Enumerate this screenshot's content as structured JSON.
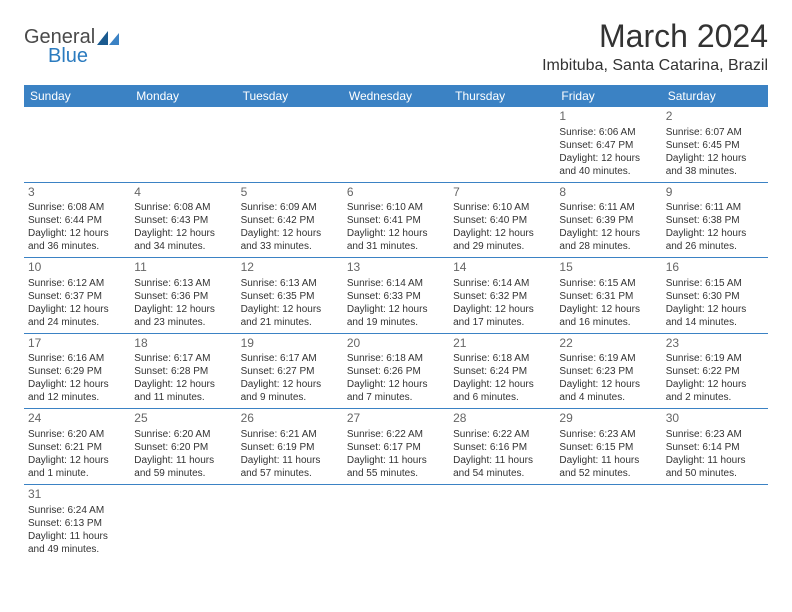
{
  "logo": {
    "general": "General",
    "blue": "Blue"
  },
  "title": "March 2024",
  "location": "Imbituba, Santa Catarina, Brazil",
  "colors": {
    "header_bg": "#3b82c4",
    "header_text": "#ffffff",
    "border": "#3b82c4",
    "text": "#333333",
    "daynum": "#666666",
    "logo_blue": "#2b7bbf",
    "logo_gray": "#4a4a4a"
  },
  "dayNames": [
    "Sunday",
    "Monday",
    "Tuesday",
    "Wednesday",
    "Thursday",
    "Friday",
    "Saturday"
  ],
  "weeks": [
    [
      null,
      null,
      null,
      null,
      null,
      {
        "n": "1",
        "sr": "Sunrise: 6:06 AM",
        "ss": "Sunset: 6:47 PM",
        "d1": "Daylight: 12 hours",
        "d2": "and 40 minutes."
      },
      {
        "n": "2",
        "sr": "Sunrise: 6:07 AM",
        "ss": "Sunset: 6:45 PM",
        "d1": "Daylight: 12 hours",
        "d2": "and 38 minutes."
      }
    ],
    [
      {
        "n": "3",
        "sr": "Sunrise: 6:08 AM",
        "ss": "Sunset: 6:44 PM",
        "d1": "Daylight: 12 hours",
        "d2": "and 36 minutes."
      },
      {
        "n": "4",
        "sr": "Sunrise: 6:08 AM",
        "ss": "Sunset: 6:43 PM",
        "d1": "Daylight: 12 hours",
        "d2": "and 34 minutes."
      },
      {
        "n": "5",
        "sr": "Sunrise: 6:09 AM",
        "ss": "Sunset: 6:42 PM",
        "d1": "Daylight: 12 hours",
        "d2": "and 33 minutes."
      },
      {
        "n": "6",
        "sr": "Sunrise: 6:10 AM",
        "ss": "Sunset: 6:41 PM",
        "d1": "Daylight: 12 hours",
        "d2": "and 31 minutes."
      },
      {
        "n": "7",
        "sr": "Sunrise: 6:10 AM",
        "ss": "Sunset: 6:40 PM",
        "d1": "Daylight: 12 hours",
        "d2": "and 29 minutes."
      },
      {
        "n": "8",
        "sr": "Sunrise: 6:11 AM",
        "ss": "Sunset: 6:39 PM",
        "d1": "Daylight: 12 hours",
        "d2": "and 28 minutes."
      },
      {
        "n": "9",
        "sr": "Sunrise: 6:11 AM",
        "ss": "Sunset: 6:38 PM",
        "d1": "Daylight: 12 hours",
        "d2": "and 26 minutes."
      }
    ],
    [
      {
        "n": "10",
        "sr": "Sunrise: 6:12 AM",
        "ss": "Sunset: 6:37 PM",
        "d1": "Daylight: 12 hours",
        "d2": "and 24 minutes."
      },
      {
        "n": "11",
        "sr": "Sunrise: 6:13 AM",
        "ss": "Sunset: 6:36 PM",
        "d1": "Daylight: 12 hours",
        "d2": "and 23 minutes."
      },
      {
        "n": "12",
        "sr": "Sunrise: 6:13 AM",
        "ss": "Sunset: 6:35 PM",
        "d1": "Daylight: 12 hours",
        "d2": "and 21 minutes."
      },
      {
        "n": "13",
        "sr": "Sunrise: 6:14 AM",
        "ss": "Sunset: 6:33 PM",
        "d1": "Daylight: 12 hours",
        "d2": "and 19 minutes."
      },
      {
        "n": "14",
        "sr": "Sunrise: 6:14 AM",
        "ss": "Sunset: 6:32 PM",
        "d1": "Daylight: 12 hours",
        "d2": "and 17 minutes."
      },
      {
        "n": "15",
        "sr": "Sunrise: 6:15 AM",
        "ss": "Sunset: 6:31 PM",
        "d1": "Daylight: 12 hours",
        "d2": "and 16 minutes."
      },
      {
        "n": "16",
        "sr": "Sunrise: 6:15 AM",
        "ss": "Sunset: 6:30 PM",
        "d1": "Daylight: 12 hours",
        "d2": "and 14 minutes."
      }
    ],
    [
      {
        "n": "17",
        "sr": "Sunrise: 6:16 AM",
        "ss": "Sunset: 6:29 PM",
        "d1": "Daylight: 12 hours",
        "d2": "and 12 minutes."
      },
      {
        "n": "18",
        "sr": "Sunrise: 6:17 AM",
        "ss": "Sunset: 6:28 PM",
        "d1": "Daylight: 12 hours",
        "d2": "and 11 minutes."
      },
      {
        "n": "19",
        "sr": "Sunrise: 6:17 AM",
        "ss": "Sunset: 6:27 PM",
        "d1": "Daylight: 12 hours",
        "d2": "and 9 minutes."
      },
      {
        "n": "20",
        "sr": "Sunrise: 6:18 AM",
        "ss": "Sunset: 6:26 PM",
        "d1": "Daylight: 12 hours",
        "d2": "and 7 minutes."
      },
      {
        "n": "21",
        "sr": "Sunrise: 6:18 AM",
        "ss": "Sunset: 6:24 PM",
        "d1": "Daylight: 12 hours",
        "d2": "and 6 minutes."
      },
      {
        "n": "22",
        "sr": "Sunrise: 6:19 AM",
        "ss": "Sunset: 6:23 PM",
        "d1": "Daylight: 12 hours",
        "d2": "and 4 minutes."
      },
      {
        "n": "23",
        "sr": "Sunrise: 6:19 AM",
        "ss": "Sunset: 6:22 PM",
        "d1": "Daylight: 12 hours",
        "d2": "and 2 minutes."
      }
    ],
    [
      {
        "n": "24",
        "sr": "Sunrise: 6:20 AM",
        "ss": "Sunset: 6:21 PM",
        "d1": "Daylight: 12 hours",
        "d2": "and 1 minute."
      },
      {
        "n": "25",
        "sr": "Sunrise: 6:20 AM",
        "ss": "Sunset: 6:20 PM",
        "d1": "Daylight: 11 hours",
        "d2": "and 59 minutes."
      },
      {
        "n": "26",
        "sr": "Sunrise: 6:21 AM",
        "ss": "Sunset: 6:19 PM",
        "d1": "Daylight: 11 hours",
        "d2": "and 57 minutes."
      },
      {
        "n": "27",
        "sr": "Sunrise: 6:22 AM",
        "ss": "Sunset: 6:17 PM",
        "d1": "Daylight: 11 hours",
        "d2": "and 55 minutes."
      },
      {
        "n": "28",
        "sr": "Sunrise: 6:22 AM",
        "ss": "Sunset: 6:16 PM",
        "d1": "Daylight: 11 hours",
        "d2": "and 54 minutes."
      },
      {
        "n": "29",
        "sr": "Sunrise: 6:23 AM",
        "ss": "Sunset: 6:15 PM",
        "d1": "Daylight: 11 hours",
        "d2": "and 52 minutes."
      },
      {
        "n": "30",
        "sr": "Sunrise: 6:23 AM",
        "ss": "Sunset: 6:14 PM",
        "d1": "Daylight: 11 hours",
        "d2": "and 50 minutes."
      }
    ],
    [
      {
        "n": "31",
        "sr": "Sunrise: 6:24 AM",
        "ss": "Sunset: 6:13 PM",
        "d1": "Daylight: 11 hours",
        "d2": "and 49 minutes."
      },
      null,
      null,
      null,
      null,
      null,
      null
    ]
  ]
}
